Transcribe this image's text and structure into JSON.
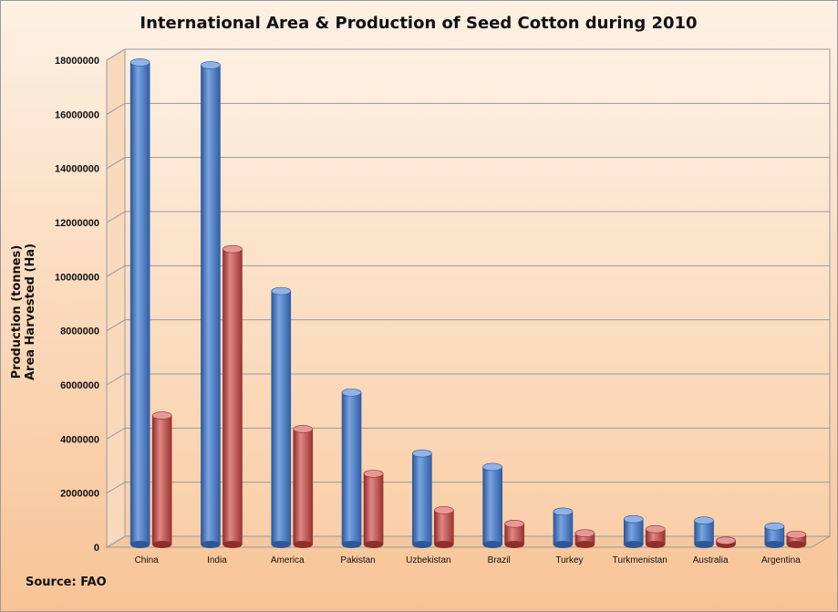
{
  "chart_data": {
    "type": "bar",
    "title": "International Area & Production of Seed Cotton during 2010",
    "ylabel_lines": [
      "Production (tonnes)",
      "Area Harvested (Ha)"
    ],
    "source": "Source: FAO",
    "categories": [
      "China",
      "India",
      "America",
      "Pakistan",
      "Uzbekistan",
      "Brazil",
      "Turkey",
      "Turkmenistan",
      "Australia",
      "Argentina"
    ],
    "series": [
      {
        "color": "#4a7cc4",
        "dark": "#2c5799",
        "light": "#8fb3e6",
        "values": [
          17850000,
          17750000,
          9400000,
          5650000,
          3400000,
          2900000,
          1250000,
          970000,
          920000,
          700000
        ]
      },
      {
        "color": "#c9504c",
        "dark": "#8f2e2b",
        "light": "#e89894",
        "values": [
          4800000,
          10950000,
          4300000,
          2650000,
          1300000,
          800000,
          450000,
          600000,
          180000,
          400000
        ]
      }
    ],
    "ylim": [
      0,
      18000000
    ],
    "yticks": [
      0,
      2000000,
      4000000,
      6000000,
      8000000,
      10000000,
      12000000,
      14000000,
      16000000,
      18000000
    ],
    "ytick_labels": [
      "0",
      "2000000",
      "4000000",
      "6000000",
      "8000000",
      "10000000",
      "12000000",
      "14000000",
      "16000000",
      "18000000"
    ],
    "grid": true,
    "legend": "none"
  }
}
